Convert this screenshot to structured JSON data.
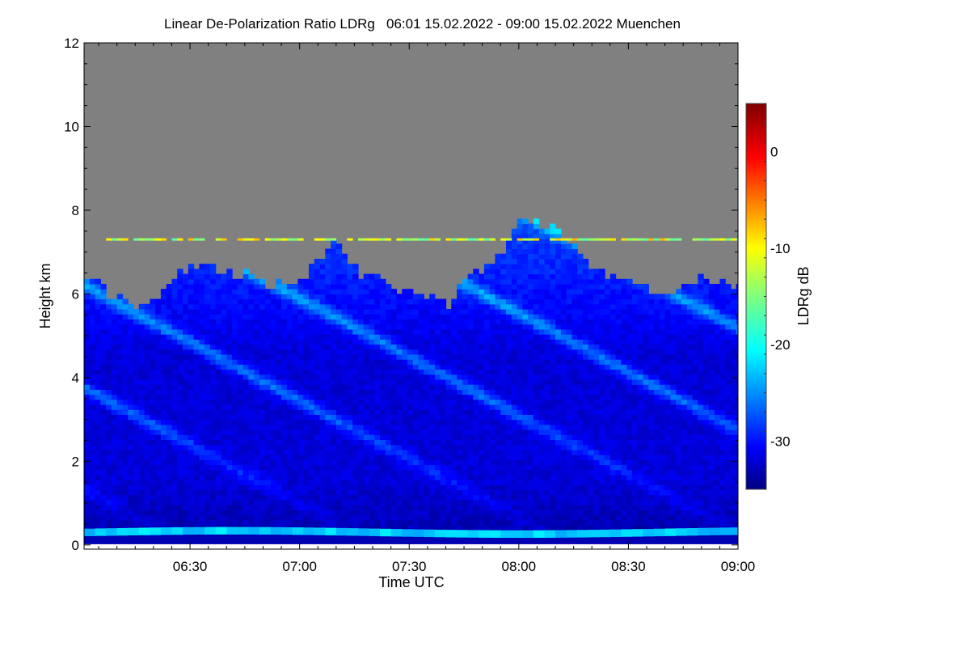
{
  "chart_data": {
    "type": "heatmap",
    "title": "Linear De-Polarization Ratio LDRg   06:01 15.02.2022 - 09:00 15.02.2022 Muenchen",
    "xlabel": "Time UTC",
    "ylabel": "Height km",
    "xlim": [
      "06:01",
      "09:00"
    ],
    "ylim": [
      -0.1,
      12
    ],
    "x_ticks": [
      "06:30",
      "07:00",
      "07:30",
      "08:00",
      "08:30",
      "09:00"
    ],
    "y_ticks": [
      "0",
      "2",
      "4",
      "6",
      "8",
      "10",
      "12"
    ],
    "colorbar": {
      "label": "LDRg dB",
      "range": [
        -35,
        5
      ],
      "ticks": [
        "0",
        "-10",
        "-20",
        "-30"
      ],
      "colormap": "jet",
      "no_data_color": "#808080"
    },
    "cloud_top_km": {
      "times": [
        "06:01",
        "06:10",
        "06:15",
        "06:20",
        "06:25",
        "06:30",
        "06:40",
        "06:50",
        "07:00",
        "07:05",
        "07:10",
        "07:15",
        "07:20",
        "07:30",
        "07:40",
        "07:45",
        "07:50",
        "07:55",
        "08:00",
        "08:05",
        "08:10",
        "08:15",
        "08:20",
        "08:30",
        "08:40",
        "08:45",
        "08:50",
        "09:00"
      ],
      "values": [
        6.4,
        5.8,
        5.7,
        5.7,
        6.4,
        6.6,
        6.5,
        6.2,
        6.3,
        6.8,
        7.2,
        6.5,
        6.3,
        6.0,
        5.7,
        6.3,
        6.5,
        7.0,
        7.8,
        7.6,
        7.5,
        7.0,
        6.5,
        6.2,
        5.9,
        6.2,
        6.4,
        6.1
      ]
    },
    "layers": {
      "boundary_layer_band_km": 0.3,
      "boundary_layer_ldr_db": -22,
      "thin_layer_km": 7.3,
      "thin_layer_ldr_db": -12,
      "cirrus_bulk_ldr_db": -30,
      "fall_streak_ldr_db": -24
    }
  }
}
